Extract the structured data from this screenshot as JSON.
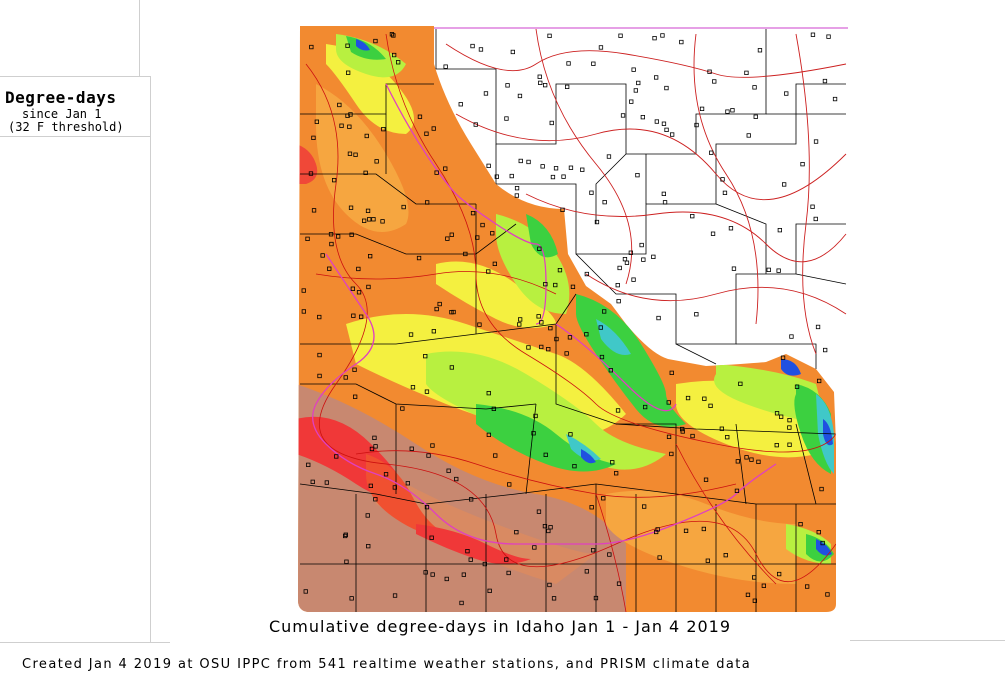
{
  "legend": {
    "title": "Degree-days",
    "line1": "since Jan 1",
    "line2": "(32 F threshold)"
  },
  "map": {
    "title": "Cumulative degree-days in Idaho  Jan 1 - Jan 4 2019",
    "region": "Idaho"
  },
  "credit": "Created Jan 4 2019 at OSU IPPC from 541 realtime weather stations, and PRISM climate data",
  "colors": {
    "red": "#f03838",
    "brown": "#c88870",
    "orange": "#f28a30",
    "orange_light": "#f6a640",
    "yellow": "#f4f040",
    "light_green": "#b8f040",
    "green": "#3cd040",
    "cyan": "#40c8c8",
    "blue": "#2050e0",
    "county_line": "#000000",
    "road_line": "#cc0000",
    "river_line": "#e040c0",
    "panel_line": "#cfcfcf"
  }
}
